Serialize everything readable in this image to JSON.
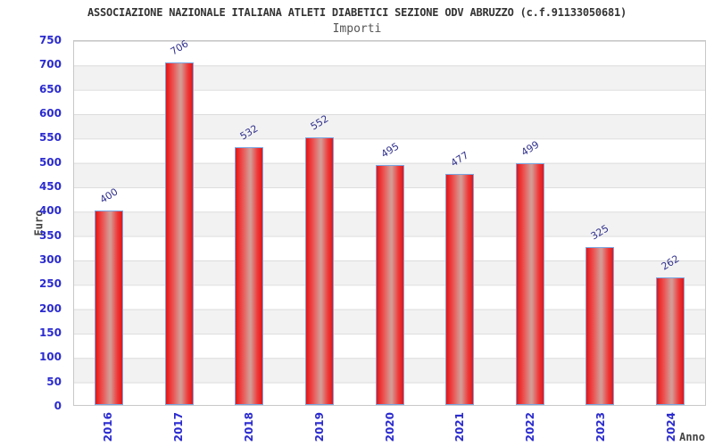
{
  "chart_data": {
    "type": "bar",
    "title": "ASSOCIAZIONE NAZIONALE ITALIANA ATLETI DIABETICI SEZIONE ODV ABRUZZO (c.f.91133050681)",
    "subtitle": "Importi",
    "xlabel": "Anno",
    "ylabel": "Euro",
    "categories": [
      "2016",
      "2017",
      "2018",
      "2019",
      "2020",
      "2021",
      "2022",
      "2023",
      "2024"
    ],
    "values": [
      400,
      706,
      532,
      552,
      495,
      477,
      499,
      325,
      262
    ],
    "ylim": [
      0,
      750
    ],
    "ytick_step": 50,
    "yticks": [
      0,
      50,
      100,
      150,
      200,
      250,
      300,
      350,
      400,
      450,
      500,
      550,
      600,
      650,
      700,
      750
    ],
    "grid": "horizontal-bands-alternating",
    "legend": "none",
    "colors": {
      "bar_fill": "#e51515",
      "bar_highlight": "#d49a94",
      "bar_border": "#7aa5e0",
      "tick_label_blue": "#2b2bd0",
      "value_label_navy": "#32328e",
      "axis_title_gray": "#444444",
      "title_gray": "#333333",
      "band_gray": "#f2f2f2",
      "gridline": "#dcdcdc",
      "plot_border": "#c8c8c8"
    }
  }
}
